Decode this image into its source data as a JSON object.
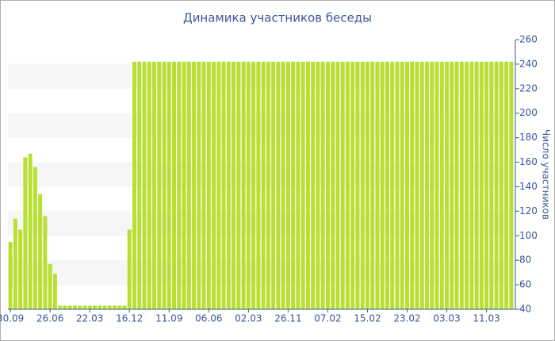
{
  "chart_data": {
    "type": "bar",
    "title": "Динамика участников беседы",
    "y_label": "Число участников",
    "categories": [
      "30.09",
      null,
      null,
      null,
      null,
      null,
      null,
      null,
      "26.06",
      null,
      null,
      null,
      null,
      null,
      null,
      null,
      "22.03",
      null,
      null,
      null,
      null,
      null,
      null,
      null,
      "16.12",
      null,
      null,
      null,
      null,
      null,
      null,
      null,
      "11.09",
      null,
      null,
      null,
      null,
      null,
      null,
      null,
      "06.06",
      null,
      null,
      null,
      null,
      null,
      null,
      null,
      "02.03",
      null,
      null,
      null,
      null,
      null,
      null,
      null,
      "26.11",
      null,
      null,
      null,
      null,
      null,
      null,
      null,
      "07.02",
      null,
      null,
      null,
      null,
      null,
      null,
      null,
      "15.02",
      null,
      null,
      null,
      null,
      null,
      null,
      null,
      "23.02",
      null,
      null,
      null,
      null,
      null,
      null,
      null,
      "03.03",
      null,
      null,
      null,
      null,
      null,
      null,
      null,
      "11.03",
      null,
      null,
      null,
      null,
      null
    ],
    "values": [
      95,
      114,
      105,
      164,
      167,
      156,
      134,
      116,
      77,
      69,
      43,
      43,
      43,
      43,
      43,
      43,
      43,
      43,
      43,
      43,
      43,
      43,
      43,
      43,
      105,
      242,
      242,
      242,
      242,
      242,
      242,
      242,
      242,
      242,
      242,
      242,
      242,
      242,
      242,
      242,
      242,
      242,
      242,
      242,
      242,
      242,
      242,
      242,
      242,
      242,
      242,
      242,
      242,
      242,
      242,
      242,
      242,
      242,
      242,
      242,
      242,
      242,
      242,
      242,
      242,
      242,
      242,
      242,
      242,
      242,
      242,
      242,
      242,
      242,
      242,
      242,
      242,
      242,
      242,
      242,
      242,
      242,
      242,
      242,
      242,
      242,
      242,
      242,
      242,
      242,
      242,
      242,
      242,
      242,
      242,
      242,
      242,
      242,
      242,
      242,
      242,
      242
    ],
    "color": "#b8e034",
    "ylim": [
      40,
      260
    ],
    "yticks": [
      40,
      60,
      80,
      100,
      120,
      140,
      160,
      180,
      200,
      220,
      240,
      260
    ],
    "grid": "bands",
    "y_axis_side": "right"
  }
}
